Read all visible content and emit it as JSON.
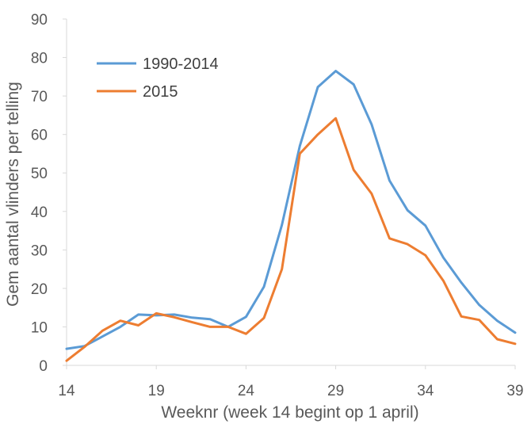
{
  "chart_data": {
    "type": "line",
    "title": "",
    "xlabel": "Weeknr (week 14 begint op 1 april)",
    "ylabel": "Gem aantal vlinders per telling",
    "x": [
      14,
      15,
      16,
      17,
      18,
      19,
      20,
      21,
      22,
      23,
      24,
      25,
      26,
      27,
      28,
      29,
      30,
      31,
      32,
      33,
      34,
      35,
      36,
      37,
      38,
      39
    ],
    "xticks": [
      14,
      19,
      24,
      29,
      34,
      39
    ],
    "xlim": [
      14,
      39
    ],
    "ylim": [
      0,
      90
    ],
    "yticks": [
      0,
      10,
      20,
      30,
      40,
      50,
      60,
      70,
      80,
      90
    ],
    "grid": false,
    "legend_position": "top-left",
    "series": [
      {
        "name": "1990-2014",
        "color": "#5B9BD5",
        "values": [
          4.3,
          5.0,
          7.5,
          10.0,
          13.2,
          13.0,
          13.2,
          12.4,
          12.0,
          10.0,
          12.6,
          20.4,
          36.5,
          57.0,
          72.3,
          76.5,
          73.0,
          62.6,
          48.0,
          40.3,
          36.3,
          28.0,
          21.5,
          15.7,
          11.6,
          8.5
        ]
      },
      {
        "name": "2015",
        "color": "#ED7D31",
        "values": [
          1.2,
          4.8,
          9.0,
          11.6,
          10.4,
          13.5,
          12.5,
          11.2,
          10.0,
          10.0,
          8.2,
          12.3,
          25.0,
          55.0,
          60.0,
          64.2,
          50.8,
          44.6,
          33.0,
          31.5,
          28.6,
          22.0,
          12.7,
          11.8,
          6.8,
          5.6
        ]
      }
    ]
  }
}
